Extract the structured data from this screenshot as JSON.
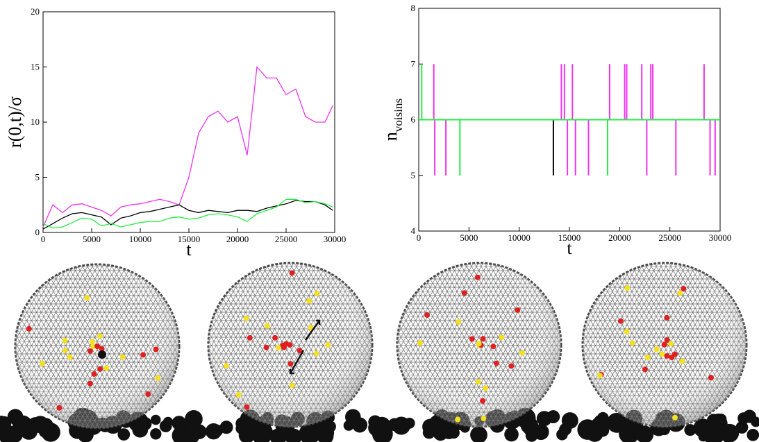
{
  "chart_data": [
    {
      "type": "line",
      "ylabel": "r(0,t)/σ",
      "xlabel": "t",
      "xlim": [
        0,
        30000
      ],
      "xticks": [
        0,
        5000,
        10000,
        15000,
        20000,
        25000,
        30000
      ],
      "ylim": [
        0,
        20
      ],
      "yticks": [
        0,
        5,
        10,
        15,
        20
      ],
      "x": [
        0,
        1000,
        2000,
        3000,
        4000,
        5000,
        6000,
        7000,
        8000,
        9000,
        10000,
        11000,
        12000,
        13000,
        14000,
        15000,
        16000,
        17000,
        18000,
        19000,
        20000,
        21000,
        22000,
        23000,
        24000,
        25000,
        26000,
        27000,
        28000,
        29000,
        29800
      ],
      "series": [
        {
          "name": "magenta",
          "color": "#ee33ee",
          "values": [
            0.5,
            2.5,
            1.8,
            2.5,
            2.6,
            2.3,
            2.0,
            1.5,
            2.3,
            2.5,
            2.6,
            2.8,
            3.0,
            2.8,
            2.5,
            5,
            9,
            10.5,
            11,
            10,
            10.5,
            7,
            15,
            14,
            14,
            12.5,
            13,
            10.5,
            10,
            10,
            11.5
          ]
        },
        {
          "name": "black",
          "color": "#000000",
          "values": [
            0.3,
            0.8,
            1.3,
            1.7,
            1.8,
            1.6,
            1.4,
            0.7,
            1.3,
            1.5,
            1.8,
            1.9,
            2.1,
            2.3,
            2.5,
            2.0,
            1.8,
            2.0,
            1.9,
            1.8,
            2.0,
            2.0,
            1.9,
            2.2,
            2.4,
            2.6,
            2.9,
            2.8,
            2.8,
            2.5,
            2.0
          ]
        },
        {
          "name": "green",
          "color": "#22ee44",
          "values": [
            0.8,
            0.4,
            0.5,
            0.9,
            1.3,
            1.2,
            0.6,
            0.8,
            0.5,
            0.7,
            0.9,
            1.0,
            1.0,
            1.3,
            1.4,
            1.2,
            1.3,
            1.6,
            1.7,
            1.6,
            1.4,
            1.0,
            1.7,
            2.0,
            2.3,
            3.0,
            3.0,
            2.7,
            2.8,
            2.6,
            2.3
          ]
        }
      ]
    },
    {
      "type": "step",
      "ylabel": "n",
      "ylabel_sub": "voisins",
      "xlabel": "t",
      "xlim": [
        0,
        30000
      ],
      "xticks": [
        0,
        5000,
        10000,
        15000,
        20000,
        25000,
        30000
      ],
      "ylim": [
        4,
        8
      ],
      "yticks": [
        4,
        5,
        6,
        7,
        8
      ],
      "series": [
        {
          "name": "black",
          "color": "#000000",
          "x": [
            0,
            13400,
            13400,
            13400,
            30000
          ],
          "values": [
            6,
            6,
            5,
            6,
            6
          ]
        },
        {
          "name": "magenta",
          "color": "#ee33ee",
          "x": [
            0,
            1500,
            1500,
            1500,
            1600,
            1600,
            1600,
            2700,
            2700,
            2700,
            14200,
            14200,
            14200,
            14500,
            14500,
            14500,
            14800,
            14800,
            14800,
            15300,
            15300,
            15300,
            15600,
            15600,
            15600,
            16900,
            16900,
            16900,
            19000,
            19000,
            19000,
            20500,
            20500,
            20500,
            20700,
            20700,
            20700,
            22200,
            22200,
            22200,
            22700,
            22700,
            22700,
            23100,
            23100,
            23100,
            23300,
            23300,
            23300,
            25600,
            25600,
            25600,
            28400,
            28400,
            28400,
            29000,
            29000,
            29000,
            29500,
            29500,
            29500,
            30000
          ],
          "values": [
            6,
            6,
            7,
            6,
            6,
            5,
            6,
            6,
            5,
            6,
            6,
            7,
            6,
            6,
            7,
            6,
            6,
            5,
            6,
            6,
            7,
            6,
            6,
            5,
            6,
            6,
            5,
            6,
            6,
            7,
            6,
            6,
            7,
            6,
            6,
            7,
            6,
            6,
            7,
            6,
            6,
            5,
            6,
            6,
            7,
            6,
            6,
            7,
            6,
            6,
            5,
            6,
            6,
            7,
            6,
            6,
            5,
            6,
            6,
            5,
            6,
            6
          ]
        },
        {
          "name": "green",
          "color": "#22ee44",
          "x": [
            0,
            300,
            300,
            300,
            4100,
            4100,
            4100,
            18800,
            18800,
            18800,
            30000
          ],
          "values": [
            6,
            6,
            7,
            6,
            6,
            5,
            6,
            6,
            5,
            6,
            6
          ]
        }
      ]
    }
  ]
}
